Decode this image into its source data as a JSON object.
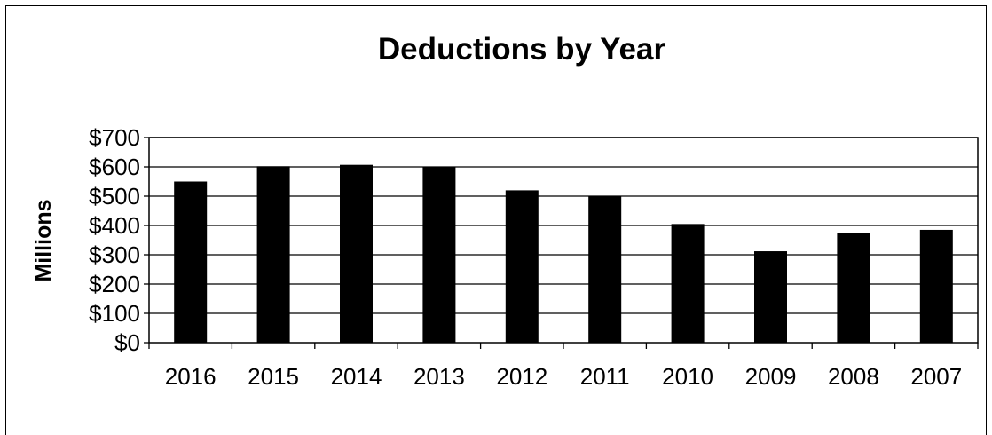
{
  "chart_data": {
    "type": "bar",
    "title": "Deductions by Year",
    "xlabel": "",
    "ylabel": "Millions",
    "categories": [
      "2016",
      "2015",
      "2014",
      "2013",
      "2012",
      "2011",
      "2010",
      "2009",
      "2008",
      "2007"
    ],
    "values": [
      550,
      602,
      607,
      601,
      520,
      500,
      405,
      312,
      375,
      385
    ],
    "ylim": [
      0,
      700
    ],
    "yticks": [
      0,
      100,
      200,
      300,
      400,
      500,
      600,
      700
    ],
    "ytick_labels": [
      "$0",
      "$100",
      "$200",
      "$300",
      "$400",
      "$500",
      "$600",
      "$700"
    ],
    "grid": true,
    "legend": "none",
    "bar_color": "#000000"
  }
}
